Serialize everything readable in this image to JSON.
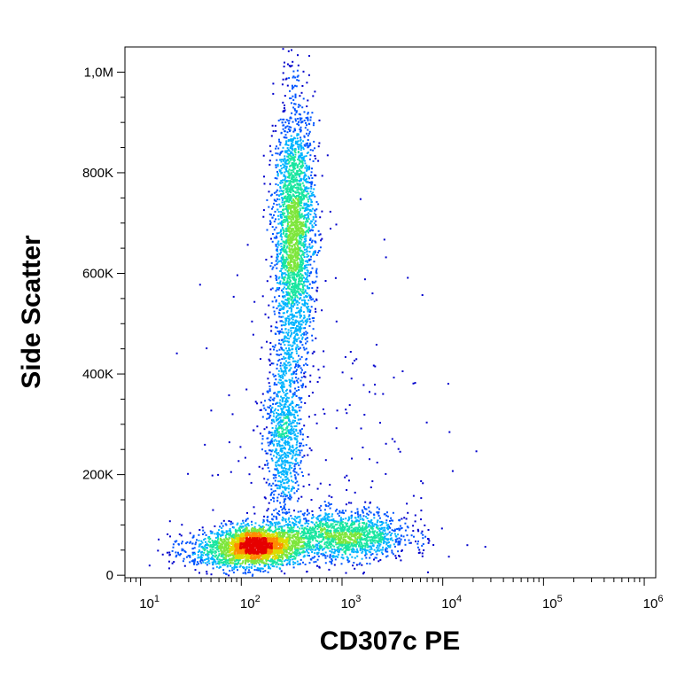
{
  "chart_data": {
    "type": "scatter",
    "subtype": "flow-cytometry-density-dot-plot",
    "xlabel": "CD307c PE",
    "ylabel": "Side Scatter",
    "x_scale": "log",
    "xlim": [
      7,
      1300000
    ],
    "ylim": [
      -5000,
      1050000
    ],
    "x_ticks": [
      {
        "base": "10",
        "exp": "1",
        "value": 10
      },
      {
        "base": "10",
        "exp": "2",
        "value": 100
      },
      {
        "base": "10",
        "exp": "3",
        "value": 1000
      },
      {
        "base": "10",
        "exp": "4",
        "value": 10000
      },
      {
        "base": "10",
        "exp": "5",
        "value": 100000
      },
      {
        "base": "10",
        "exp": "6",
        "value": 1000000
      }
    ],
    "y_ticks": [
      {
        "label": "0",
        "value": 0
      },
      {
        "label": "200K",
        "value": 200000
      },
      {
        "label": "400K",
        "value": 400000
      },
      {
        "label": "600K",
        "value": 600000
      },
      {
        "label": "800K",
        "value": 800000
      },
      {
        "label": "1,0M",
        "value": 1000000
      }
    ],
    "grid": false,
    "legend": "none",
    "density_colormap": [
      "#0000cc",
      "#0055ff",
      "#00b4ff",
      "#19e6a0",
      "#7ee63c",
      "#dcdc00",
      "#ff8c00",
      "#e60000"
    ],
    "populations": [
      {
        "x_center": 140,
        "y_center": 60000,
        "x_log_spread": 0.22,
        "y_spread": 20000,
        "count": 2200
      },
      {
        "x_center": 1000,
        "y_center": 80000,
        "x_log_spread": 0.33,
        "y_spread": 24000,
        "count": 1500
      },
      {
        "x_center": 330,
        "y_center": 680000,
        "x_log_spread": 0.1,
        "y_spread": 130000,
        "count": 2600
      },
      {
        "x_center": 260,
        "y_center": 280000,
        "x_log_spread": 0.09,
        "y_spread": 95000,
        "count": 900
      },
      {
        "x_center": 60,
        "y_center": 45000,
        "x_log_spread": 0.25,
        "y_spread": 18000,
        "count": 400
      },
      {
        "x_center": 600,
        "y_center": 300000,
        "x_log_spread": 0.6,
        "y_spread": 200000,
        "count": 200
      }
    ]
  }
}
